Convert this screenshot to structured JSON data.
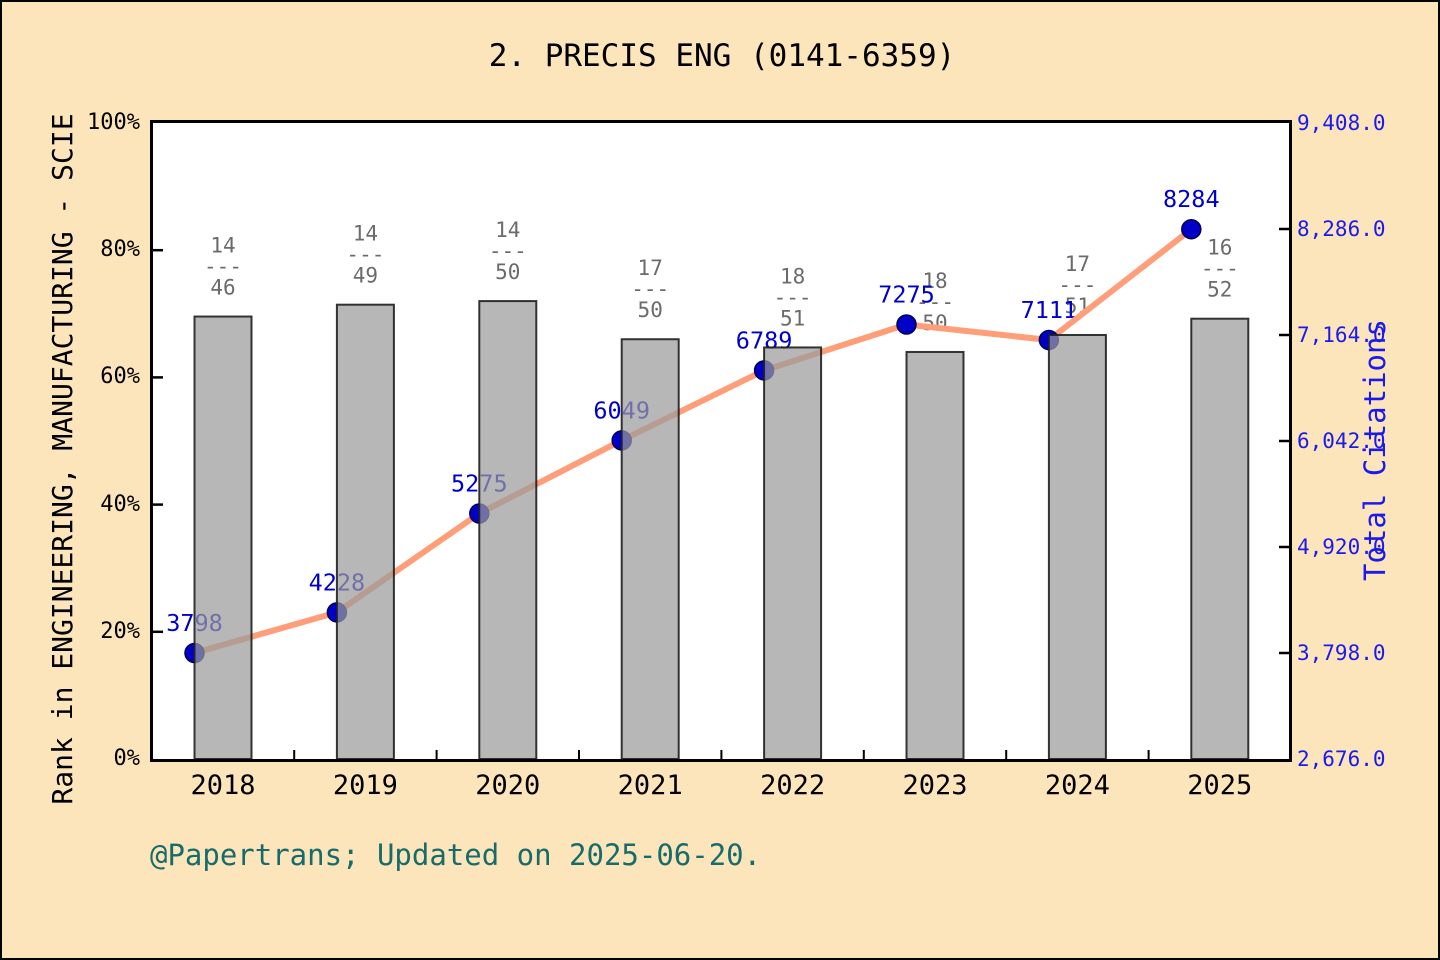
{
  "title": "2. PRECIS ENG (0141-6359)",
  "footer_note": "@Papertrans; Updated on 2025-06-20.",
  "left_axis": {
    "label": "Rank in ENGINEERING, MANUFACTURING - SCIE",
    "ticks": [
      "0%",
      "20%",
      "40%",
      "60%",
      "80%",
      "100%"
    ],
    "tick_values": [
      0,
      20,
      40,
      60,
      80,
      100
    ],
    "min": 0,
    "max": 100
  },
  "right_axis": {
    "label": "Total Citations",
    "ticks": [
      "2,676.0",
      "3,798.0",
      "4,920.0",
      "6,042.0",
      "7,164.0",
      "8,286.0",
      "9,408.0"
    ],
    "tick_values": [
      2676,
      3798,
      4920,
      6042,
      7164,
      8286,
      9408
    ],
    "min": 2676,
    "max": 9408
  },
  "colors": {
    "background": "#FCE5BA",
    "plot_background": "#FFFFFF",
    "axis": "#000000",
    "bar_fill": "#9B9B9B",
    "bar_opacity": 0.72,
    "bar_edge": "#1F1F1F",
    "line": "#FF9E78",
    "marker_fill": "#0000C8",
    "marker_edge": "#000050",
    "citation_label": "#0000CD",
    "fraction_label": "#6B6B6B",
    "right_axis_text": "#1A1AEE",
    "footer_text": "#176B6B"
  },
  "chart_data": {
    "type": "bar+line",
    "title": "2. PRECIS ENG (0141-6359)",
    "categories": [
      "2018",
      "2019",
      "2020",
      "2021",
      "2022",
      "2023",
      "2024",
      "2025"
    ],
    "xlabel": "",
    "ylabel_left": "Rank in ENGINEERING, MANUFACTURING - SCIE",
    "ylabel_right": "Total Citations",
    "left_ylim": [
      0,
      100
    ],
    "right_ylim": [
      2676,
      9408
    ],
    "grid": false,
    "legend": "none",
    "fraction_dash": "---",
    "series": [
      {
        "name": "Rank fraction (bar, left axis %)",
        "type": "bar",
        "axis": "left",
        "fractions": [
          {
            "num": "14",
            "den": "46"
          },
          {
            "num": "14",
            "den": "49"
          },
          {
            "num": "14",
            "den": "50"
          },
          {
            "num": "17",
            "den": "50"
          },
          {
            "num": "18",
            "den": "51"
          },
          {
            "num": "18",
            "den": "50"
          },
          {
            "num": "17",
            "den": "51"
          },
          {
            "num": "16",
            "den": "52"
          }
        ],
        "values_percentile": [
          69.57,
          71.43,
          72.0,
          66.0,
          64.71,
          64.0,
          66.67,
          69.23
        ]
      },
      {
        "name": "Total Citations (line, right axis)",
        "type": "line",
        "axis": "right",
        "values": [
          3798,
          4228,
          5275,
          6049,
          6789,
          7275,
          7111,
          8284
        ],
        "labels": [
          "3798",
          "4228",
          "5275",
          "6049",
          "6789",
          "7275",
          "7111",
          "8284"
        ]
      }
    ]
  }
}
